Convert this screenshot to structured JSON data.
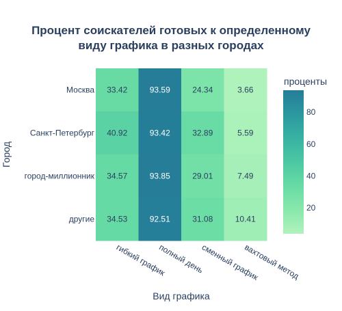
{
  "chart_data": {
    "type": "heatmap",
    "title_lines": [
      "Процент соискателей готовых к определенному",
      "виду графика в разных городах"
    ],
    "xlabel": "Вид графика",
    "ylabel": "Город",
    "x": [
      "гибкий график",
      "полный день",
      "сменный график",
      "вахтовый метод"
    ],
    "y": [
      "Москва",
      "Санкт-Петербург",
      "город-миллионник",
      "другие"
    ],
    "z": [
      [
        33.42,
        93.59,
        24.34,
        3.66
      ],
      [
        40.92,
        93.42,
        32.89,
        5.59
      ],
      [
        34.57,
        93.85,
        29.01,
        7.49
      ],
      [
        34.53,
        92.51,
        31.08,
        10.41
      ]
    ],
    "zlim": [
      3.66,
      93.85
    ],
    "colorbar": {
      "title": "проценты",
      "ticks": [
        20,
        40,
        60,
        80
      ],
      "tick_labels": [
        "20",
        "40",
        "60",
        "80"
      ]
    },
    "colorscale": [
      "#b0f2bc",
      "#89e8ac",
      "#67dba5",
      "#4cc8a3",
      "#38b2a3",
      "#2c98a0",
      "#257d98"
    ]
  }
}
